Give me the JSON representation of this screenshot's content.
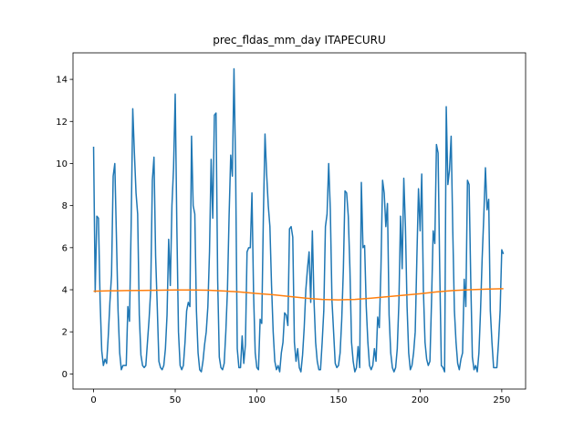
{
  "chart_data": {
    "type": "line",
    "title": "prec_fldas_mm_day ITAPECURU",
    "xlim": [
      -12.6,
      264.6
    ],
    "xticks": [
      0,
      50,
      100,
      150,
      200,
      250
    ],
    "ylim": [
      -0.72,
      15.26
    ],
    "yticks": [
      0,
      2,
      4,
      6,
      8,
      10,
      12,
      14
    ],
    "series": [
      {
        "color": "#1f77b4",
        "values": [
          10.8,
          3.9,
          7.5,
          7.4,
          3.5,
          1.1,
          0.4,
          0.7,
          0.5,
          1.8,
          3.4,
          4.7,
          9.4,
          10.0,
          6.5,
          3.0,
          1.0,
          0.2,
          0.4,
          0.4,
          0.4,
          3.2,
          2.5,
          7.0,
          12.6,
          10.5,
          8.6,
          7.6,
          2.8,
          0.9,
          0.4,
          0.3,
          0.4,
          1.5,
          2.6,
          4.0,
          9.2,
          10.3,
          5.6,
          3.2,
          0.6,
          0.3,
          0.2,
          0.4,
          1.2,
          2.8,
          6.4,
          4.2,
          8.0,
          9.8,
          13.3,
          7.0,
          2.0,
          0.4,
          0.2,
          0.4,
          1.5,
          3.0,
          3.4,
          3.2,
          11.3,
          8.0,
          7.6,
          3.0,
          1.0,
          0.2,
          0.1,
          0.6,
          1.4,
          2.0,
          3.2,
          5.8,
          10.2,
          7.4,
          12.3,
          12.4,
          4.5,
          0.8,
          0.3,
          0.2,
          0.5,
          2.0,
          4.0,
          7.5,
          10.4,
          9.4,
          14.5,
          9.8,
          1.2,
          0.3,
          0.3,
          1.8,
          0.5,
          1.4,
          5.8,
          6.0,
          6.0,
          8.6,
          3.8,
          1.0,
          0.3,
          0.2,
          2.6,
          2.4,
          7.5,
          11.4,
          9.5,
          8.0,
          7.0,
          4.2,
          2.0,
          0.6,
          0.2,
          0.4,
          0.1,
          1.0,
          1.5,
          2.9,
          2.8,
          2.3,
          6.9,
          7.0,
          6.5,
          1.5,
          0.6,
          1.2,
          0.3,
          0.1,
          0.9,
          2.2,
          4.0,
          5.0,
          5.8,
          3.4,
          6.8,
          3.5,
          1.5,
          0.6,
          0.2,
          0.2,
          1.5,
          3.0,
          7.0,
          7.6,
          10.0,
          7.8,
          3.5,
          2.0,
          0.5,
          0.3,
          0.4,
          1.0,
          2.6,
          5.0,
          8.7,
          8.6,
          7.5,
          5.0,
          1.5,
          0.6,
          0.1,
          0.3,
          1.3,
          0.3,
          9.1,
          6.0,
          6.1,
          3.2,
          1.5,
          0.4,
          0.2,
          0.4,
          1.2,
          0.6,
          2.7,
          2.2,
          5.0,
          9.2,
          8.6,
          7.0,
          8.1,
          2.8,
          1.0,
          0.3,
          0.1,
          0.3,
          1.2,
          3.4,
          7.5,
          5.0,
          9.3,
          7.0,
          3.2,
          1.0,
          0.2,
          0.4,
          1.0,
          2.0,
          5.5,
          8.8,
          6.8,
          9.5,
          4.0,
          1.5,
          0.7,
          0.4,
          0.6,
          3.5,
          6.8,
          6.2,
          10.9,
          10.5,
          5.0,
          0.4,
          0.3,
          0.1,
          12.7,
          9.0,
          9.7,
          11.3,
          6.8,
          3.0,
          1.5,
          0.5,
          0.2,
          0.7,
          1.0,
          4.5,
          3.2,
          9.2,
          9.0,
          4.5,
          0.8,
          0.2,
          0.4,
          0.1,
          1.0,
          3.0,
          5.5,
          7.5,
          9.8,
          7.8,
          8.3,
          3.0,
          1.5,
          0.3,
          0.3,
          0.3,
          1.5,
          3.0,
          5.9,
          5.7
        ]
      },
      {
        "color": "#ff7f0e",
        "x": [
          0,
          10,
          20,
          30,
          40,
          50,
          60,
          70,
          80,
          90,
          100,
          110,
          120,
          130,
          140,
          150,
          160,
          170,
          180,
          190,
          200,
          210,
          220,
          230,
          240,
          250,
          251
        ],
        "values": [
          3.93,
          3.95,
          3.96,
          3.97,
          3.98,
          3.99,
          3.99,
          3.98,
          3.94,
          3.89,
          3.82,
          3.76,
          3.68,
          3.6,
          3.54,
          3.52,
          3.54,
          3.6,
          3.67,
          3.74,
          3.81,
          3.9,
          3.96,
          4.0,
          4.03,
          4.05,
          4.05
        ]
      }
    ]
  }
}
